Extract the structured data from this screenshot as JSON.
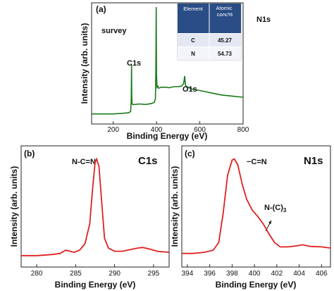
{
  "chart_data": [
    {
      "id": "a",
      "type": "line",
      "panel_label": "(a)",
      "title": "survey",
      "xlabel": "Binding Energy (eV)",
      "ylabel": "Intensity (arb. units)",
      "xlim": [
        100,
        800
      ],
      "ylim": [
        0,
        100
      ],
      "xticks": [
        200,
        400,
        600,
        800
      ],
      "color": "#1a7a1a",
      "series": [
        {
          "x": [
            100,
            150,
            200,
            240,
            270,
            280,
            283,
            284.5,
            285.5,
            287,
            290,
            300,
            320,
            350,
            380,
            390,
            395,
            397,
            398.5,
            400,
            402,
            406,
            410,
            420,
            440,
            460,
            480,
            500,
            515,
            525,
            530,
            533,
            536,
            545,
            560,
            600,
            650,
            700,
            750,
            800
          ],
          "y": [
            4,
            4,
            4,
            4.5,
            5,
            6,
            15,
            48,
            20,
            13,
            12.5,
            12.5,
            13,
            12.5,
            13.5,
            14.5,
            18,
            45,
            100,
            40,
            28,
            29,
            27,
            28,
            28,
            27.5,
            28.5,
            28.5,
            29,
            31,
            38,
            31,
            29,
            28,
            26.5,
            25,
            23,
            21,
            20,
            19
          ]
        }
      ],
      "annotations": [
        {
          "text": "C1s",
          "x": 284.5
        },
        {
          "text": "N1s",
          "x": 398.5
        },
        {
          "text": "O1s",
          "x": 532
        }
      ],
      "table": {
        "headers": [
          "Element",
          "Atomic conc%"
        ],
        "rows": [
          [
            "C",
            "45.27"
          ],
          [
            "N",
            "54.73"
          ]
        ]
      }
    },
    {
      "id": "b",
      "type": "line",
      "panel_label": "(b)",
      "title": "C1s",
      "xlabel": "Binding Energy (eV)",
      "ylabel": "Intensity (arb. units)",
      "xlim": [
        278,
        297
      ],
      "ylim": [
        0,
        100
      ],
      "xticks": [
        280,
        285,
        290,
        295
      ],
      "color": "#e02020",
      "series": [
        {
          "x": [
            278,
            280,
            282,
            283,
            283.7,
            284.3,
            284.8,
            285.5,
            286.2,
            286.8,
            287.2,
            287.5,
            287.7,
            288,
            288.3,
            288.7,
            289.2,
            290,
            291,
            292,
            293,
            293.6,
            294.5,
            295.5,
            297
          ],
          "y": [
            6,
            6,
            7,
            8,
            11,
            10,
            9,
            11,
            17,
            35,
            70,
            92,
            95,
            88,
            60,
            22,
            13,
            10,
            10,
            11.5,
            13,
            13.5,
            12,
            10,
            9
          ]
        }
      ],
      "annotations": [
        {
          "text": "N-C=N",
          "x": 287.7
        }
      ]
    },
    {
      "id": "c",
      "type": "line",
      "panel_label": "(c)",
      "title": "N1s",
      "xlabel": "Binding Energy (eV)",
      "ylabel": "Intensity (arb. units)",
      "xlim": [
        393.5,
        406.8
      ],
      "ylim": [
        0,
        100
      ],
      "xticks": [
        394,
        396,
        398,
        400,
        402,
        404,
        406
      ],
      "color": "#e02020",
      "series": [
        {
          "x": [
            393.5,
            394.5,
            395.5,
            396.3,
            396.8,
            397.2,
            397.6,
            398,
            398.2,
            398.5,
            398.9,
            399.3,
            399.8,
            400.3,
            400.8,
            401.3,
            401.8,
            402.3,
            403,
            403.8,
            404.3,
            405,
            406,
            406.8
          ],
          "y": [
            8,
            8,
            9,
            11,
            18,
            45,
            80,
            94,
            95,
            90,
            72,
            58,
            48,
            42,
            35,
            26,
            18,
            14,
            14,
            15,
            16,
            14.5,
            14,
            13
          ]
        }
      ],
      "annotations": [
        {
          "text": "−C=N",
          "x": 399.5
        },
        {
          "text": "N-(C)3",
          "x": 401.2
        }
      ]
    }
  ]
}
